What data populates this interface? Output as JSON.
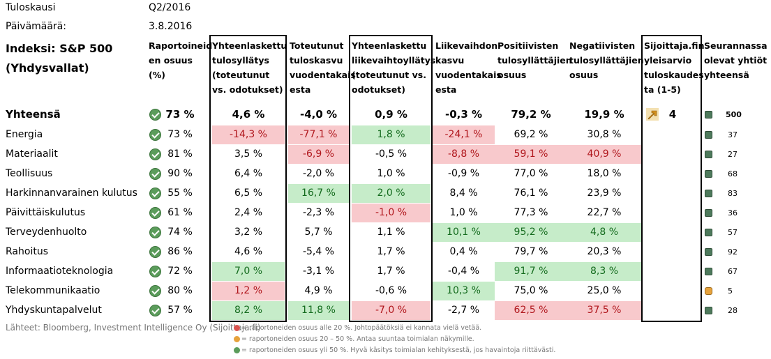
{
  "meta": {
    "period_label": "Tuloskausi",
    "period_value": "Q2/2016",
    "date_label": "Päivämäärä:",
    "date_value": "3.8.2016"
  },
  "index_title_1": "Indeksi: S&P 500",
  "index_title_2": "(Yhdysvallat)",
  "headers": [
    "Raportoineid en osuus (%)",
    "Yhteenlaskettu tulosyllätys (toteutunut vs. odotukset)",
    "Toteutunut tuloskasvu vuodentakais esta",
    "Yhteenlaskettu liikevaihtoyllätys (toteutunut vs. odotukset)",
    "Liikevaihdon kasvu vuodentakais esta",
    "Positiivisten tulosyllättäjien osuus",
    "Negatiivisten tulosyllättäjien osuus",
    "Sijoittaja.fin yleisarvio tuloskaudes ta (1-5)",
    "Seurannassa olevat yhtiöt yhteensä"
  ],
  "total": {
    "label": "Yhteensä",
    "reported": "73 %",
    "earnings_surprise": "4,6 %",
    "earnings_growth": "-4,0 %",
    "revenue_surprise": "0,9 %",
    "revenue_growth": "-0,3 %",
    "positive_share": "79,2 %",
    "negative_share": "19,9 %",
    "rating": "4",
    "rating_icon": "up-right-arrow-icon",
    "count": "500"
  },
  "rows": [
    {
      "label": "Energia",
      "reported": "73 %",
      "es": "-14,3 %",
      "eg": "-77,1 %",
      "rs": "1,8 %",
      "rg": "-24,1 %",
      "pos": "69,2 %",
      "neg": "30,8 %",
      "count": "37",
      "status": "green"
    },
    {
      "label": "Materiaalit",
      "reported": "81 %",
      "es": "3,5 %",
      "eg": "-6,9 %",
      "rs": "-0,5 %",
      "rg": "-8,8 %",
      "pos": "59,1 %",
      "neg": "40,9 %",
      "count": "27",
      "status": "green"
    },
    {
      "label": "Teollisuus",
      "reported": "90 %",
      "es": "6,4 %",
      "eg": "-2,0 %",
      "rs": "1,0 %",
      "rg": "-0,9 %",
      "pos": "77,0 %",
      "neg": "18,0 %",
      "count": "68",
      "status": "green"
    },
    {
      "label": "Harkinnanvarainen kulutus",
      "reported": "55 %",
      "es": "6,5 %",
      "eg": "16,7 %",
      "rs": "2,0 %",
      "rg": "8,4 %",
      "pos": "76,1 %",
      "neg": "23,9 %",
      "count": "83",
      "status": "green"
    },
    {
      "label": "Päivittäiskulutus",
      "reported": "61 %",
      "es": "2,4 %",
      "eg": "-2,3 %",
      "rs": "-1,0 %",
      "rg": "1,0 %",
      "pos": "77,3 %",
      "neg": "22,7 %",
      "count": "36",
      "status": "green"
    },
    {
      "label": "Terveydenhuolto",
      "reported": "74 %",
      "es": "3,2 %",
      "eg": "5,7 %",
      "rs": "1,1 %",
      "rg": "10,1 %",
      "pos": "95,2 %",
      "neg": "4,8 %",
      "count": "57",
      "status": "green"
    },
    {
      "label": "Rahoitus",
      "reported": "86 %",
      "es": "4,6 %",
      "eg": "-5,4 %",
      "rs": "1,7 %",
      "rg": "0,4 %",
      "pos": "79,7 %",
      "neg": "20,3 %",
      "count": "92",
      "status": "green"
    },
    {
      "label": "Informaatioteknologia",
      "reported": "72 %",
      "es": "7,0 %",
      "eg": "-3,1 %",
      "rs": "1,7 %",
      "rg": "-0,4 %",
      "pos": "91,7 %",
      "neg": "8,3 %",
      "count": "67",
      "status": "green"
    },
    {
      "label": "Telekommunikaatio",
      "reported": "80 %",
      "es": "1,2 %",
      "eg": "4,9 %",
      "rs": "-0,6 %",
      "rg": "10,3 %",
      "pos": "75,0 %",
      "neg": "25,0 %",
      "count": "5",
      "status": "orange"
    },
    {
      "label": "Yhdyskuntapalvelut",
      "reported": "57 %",
      "es": "8,2 %",
      "eg": "11,8 %",
      "rs": "-7,0 %",
      "rg": "-2,7 %",
      "pos": "62,5 %",
      "neg": "37,5 %",
      "count": "28",
      "status": "green"
    }
  ],
  "highlights": {
    "red_color": "#f8c9cc",
    "green_color": "#c6ecc9"
  },
  "source": "Lähteet: Bloomberg, Investment Intelligence Oy (Sijoittaja.fi)",
  "legend": [
    {
      "icon": "red-x-icon",
      "text": "= raportoneiden osuus alle 20 %. Johtopäätöksiä ei kannata vielä vetää."
    },
    {
      "icon": "orange-minus-icon",
      "text": "= raportoneiden osuus 20 – 50 %. Antaa suuntaa toimialan näkymille."
    },
    {
      "icon": "green-check-icon",
      "text": "= raportoneiden osuus yli 50 %. Hyvä käsitys toimialan kehityksestä, jos havaintoja riittävästi."
    }
  ]
}
